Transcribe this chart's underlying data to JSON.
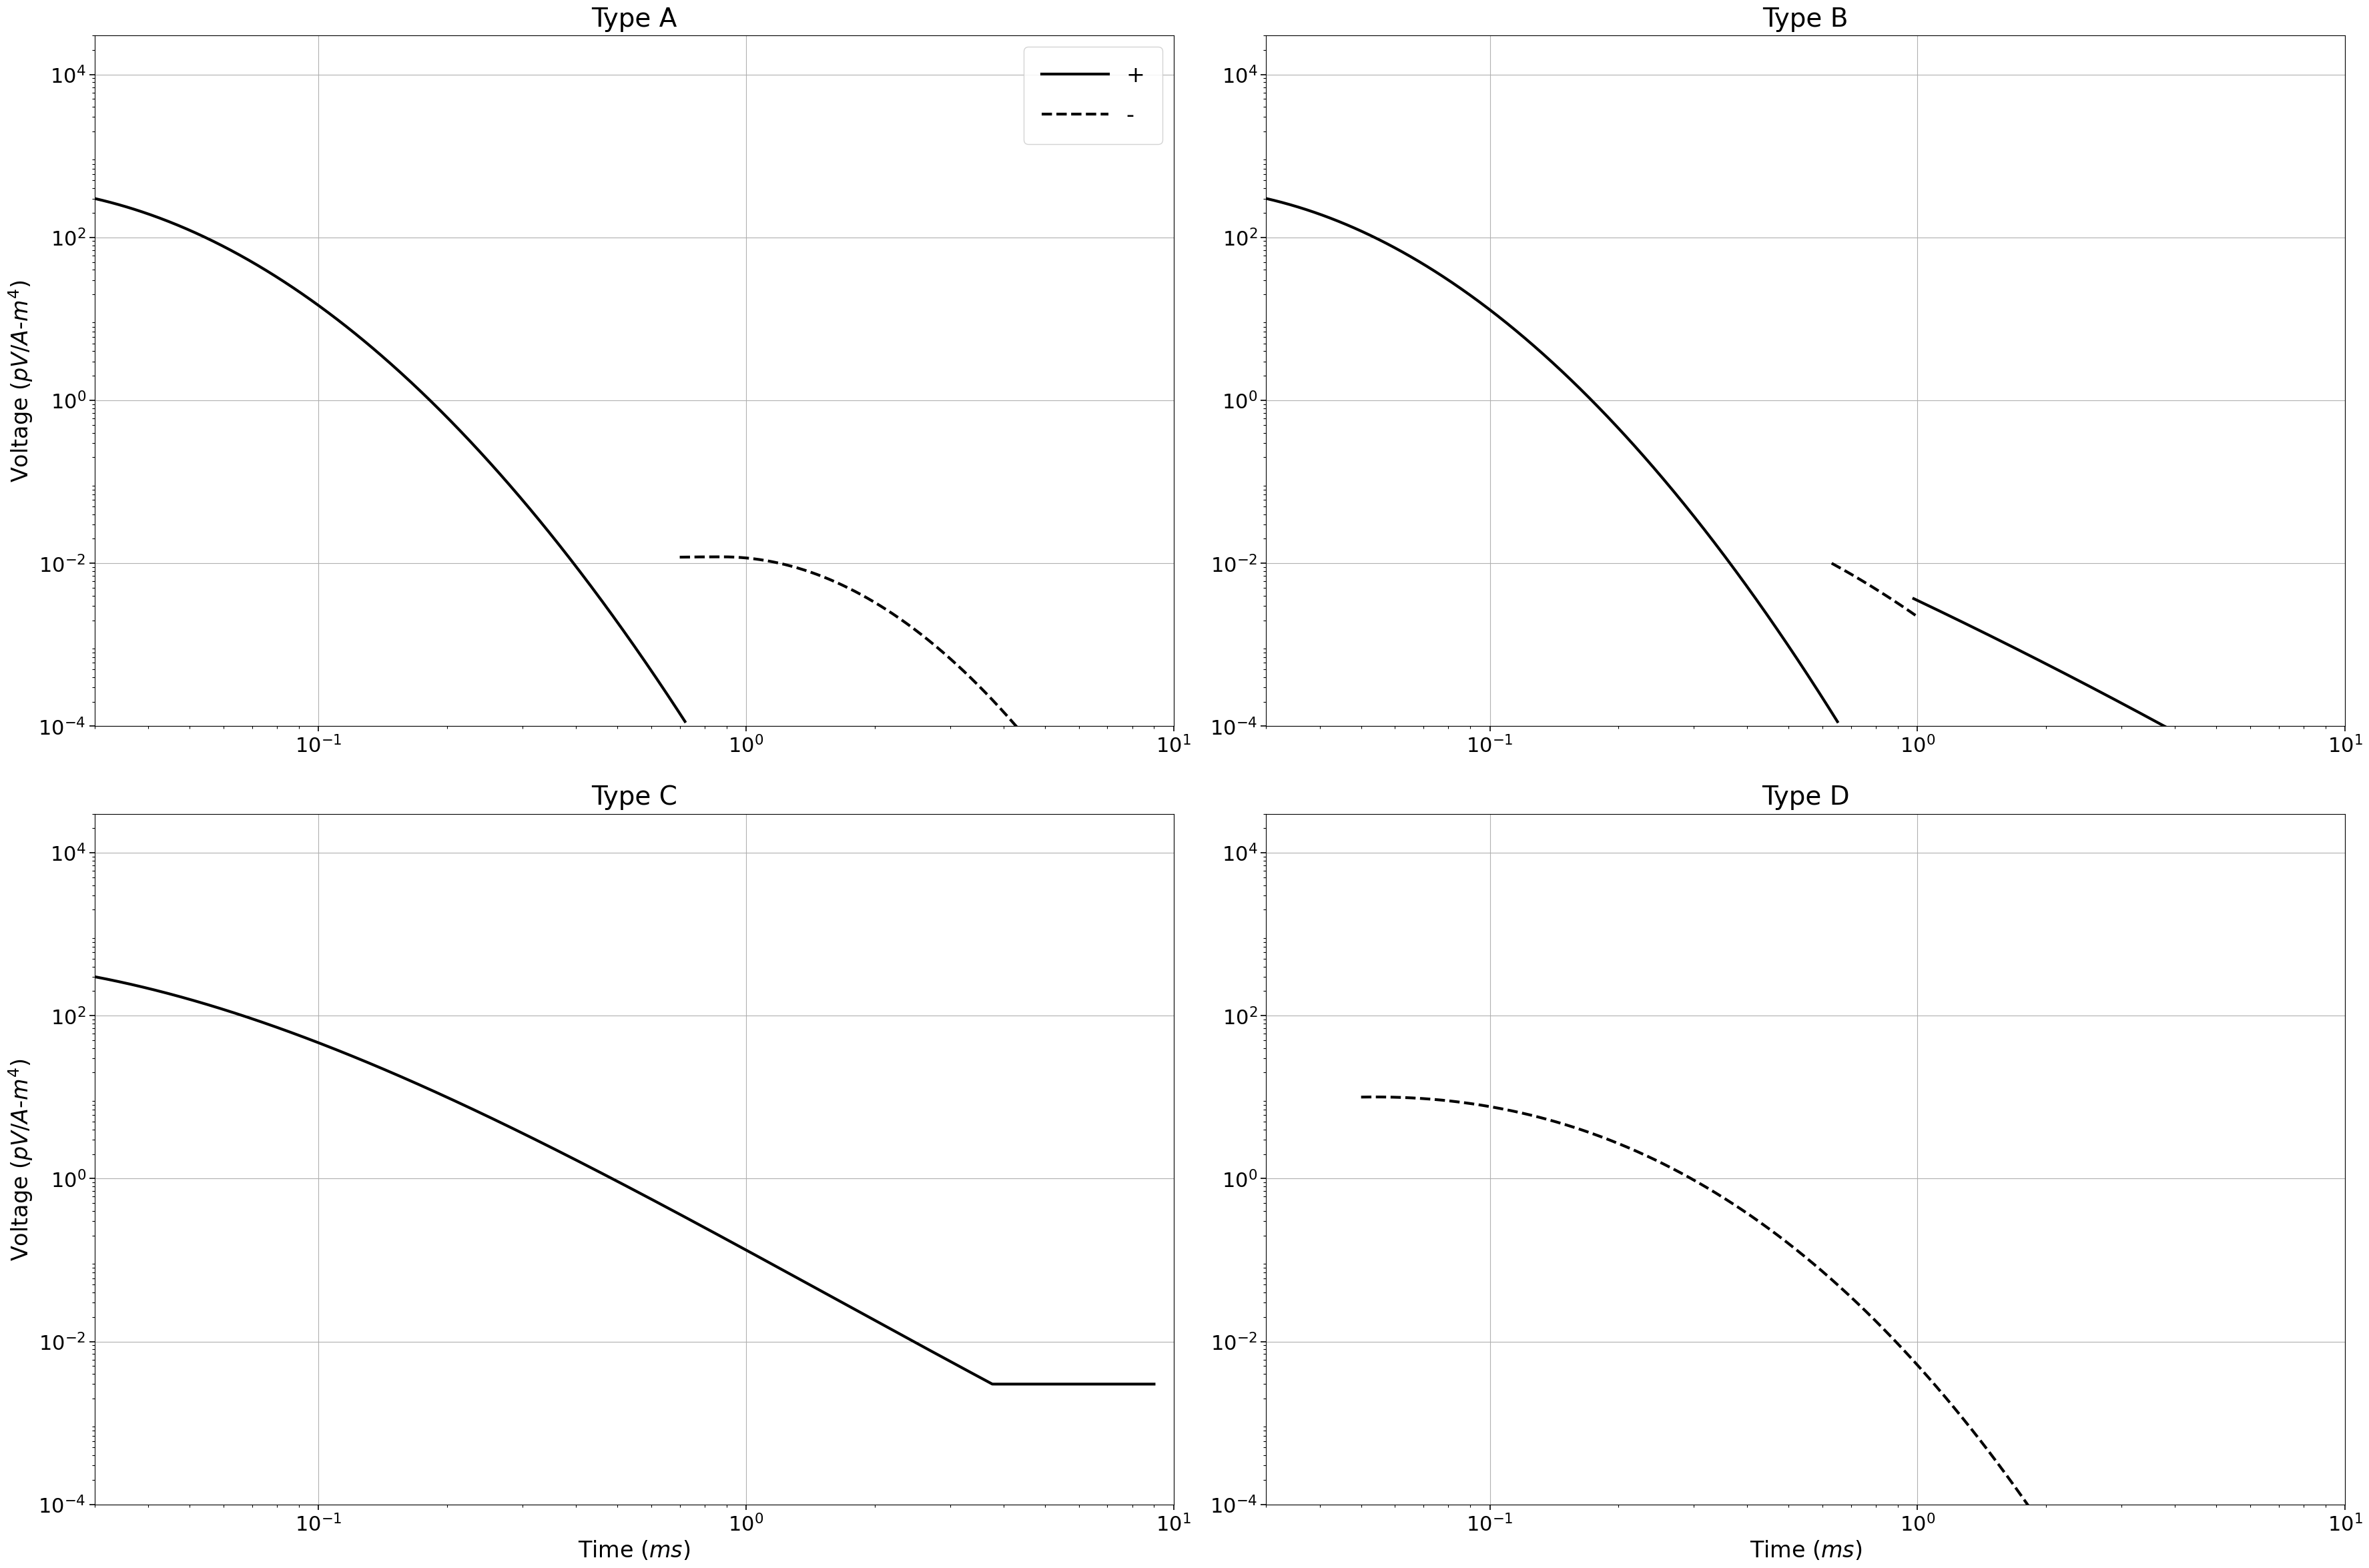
{
  "titles": [
    "Type A",
    "Type B",
    "Type C",
    "Type D"
  ],
  "ylabel": "Voltage ($pV/A$-$m^4$)",
  "xlabel": "Time ($ms$)",
  "xlim": [
    0.03,
    10
  ],
  "ylim": [
    0.0001,
    30000.0
  ],
  "legend_labels": [
    "+",
    "-"
  ],
  "background_color": "#ffffff",
  "grid_color": "#b0b0b0",
  "line_color": "#000000",
  "title_fontsize": 28,
  "label_fontsize": 24,
  "tick_fontsize": 22,
  "legend_fontsize": 24,
  "linewidth": 3.0,
  "yticks": [
    0.0001,
    0.01,
    1.0,
    100.0,
    10000.0
  ],
  "ytick_labels": [
    "$10^{-4}$",
    "$10^{-2}$",
    "$10^{0}$",
    "$10^{2}$",
    "$10^{4}$"
  ],
  "xticks": [
    0.1,
    1.0,
    10.0
  ],
  "xtick_labels": [
    "$10^{-1}$",
    "$10^{0}$",
    "$10^{1}$"
  ]
}
